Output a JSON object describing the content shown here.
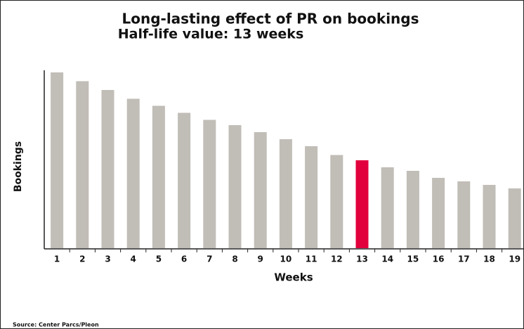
{
  "chart_data": {
    "type": "bar",
    "title": "Long-lasting effect of PR on bookings",
    "subtitle": "Half-life value: 13 weeks",
    "x_label": "Weeks",
    "y_label": "Bookings",
    "source": "Source: Center Parcs/Pleon",
    "categories": [
      "1",
      "2",
      "3",
      "4",
      "5",
      "6",
      "7",
      "8",
      "9",
      "10",
      "11",
      "12",
      "13",
      "14",
      "15",
      "16",
      "17",
      "18",
      "19"
    ],
    "values": [
      100,
      95,
      90,
      85,
      81,
      77,
      73,
      70,
      66,
      62,
      58,
      53,
      50,
      46,
      44,
      40,
      38,
      36,
      34
    ],
    "colors": [
      "#c1bdb7",
      "#c1bdb7",
      "#c1bdb7",
      "#c1bdb7",
      "#c1bdb7",
      "#c1bdb7",
      "#c1bdb7",
      "#c1bdb7",
      "#c1bdb7",
      "#c1bdb7",
      "#c1bdb7",
      "#c1bdb7",
      "#e2003c",
      "#c1bdb7",
      "#c1bdb7",
      "#c1bdb7",
      "#c1bdb7",
      "#c1bdb7",
      "#c1bdb7"
    ],
    "ylim": [
      0,
      100
    ],
    "grid": false
  }
}
